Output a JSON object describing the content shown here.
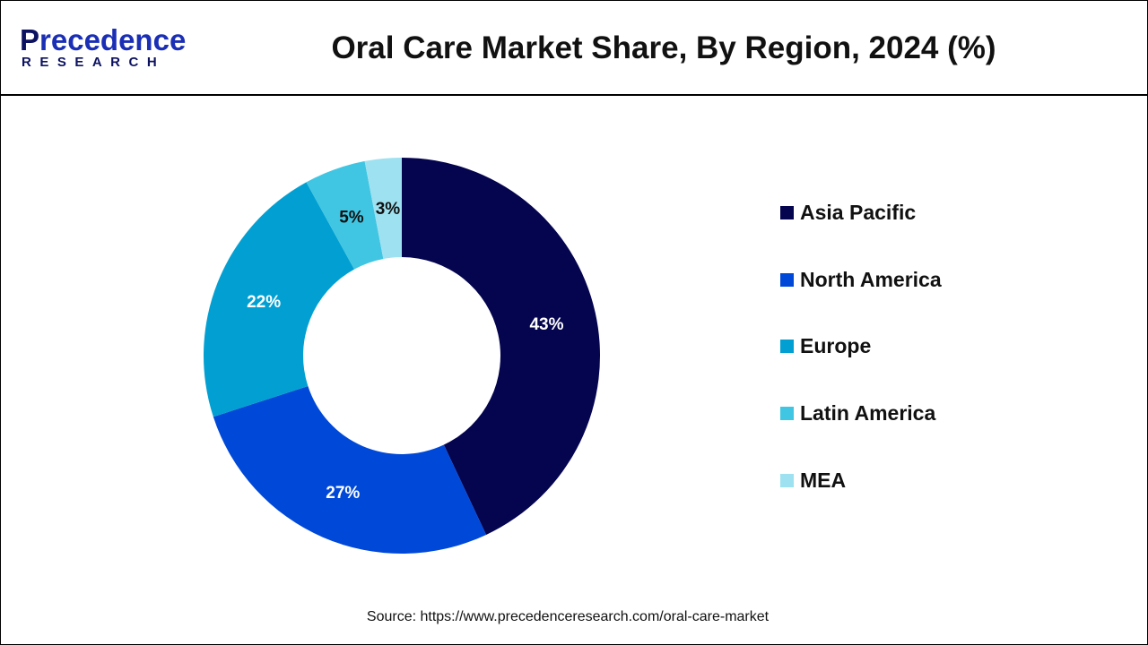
{
  "header": {
    "logo_text_top": "Precedence",
    "logo_text_bottom": "RESEARCH",
    "title": "Oral Care Market Share, By Region, 2024 (%)"
  },
  "chart_data": {
    "type": "pie",
    "variant": "donut",
    "title": "Oral Care Market Share, By Region, 2024 (%)",
    "categories": [
      "Asia Pacific",
      "North America",
      "Europe",
      "Latin America",
      "MEA"
    ],
    "values": [
      43,
      27,
      22,
      5,
      3
    ],
    "data_labels": [
      "43%",
      "27%",
      "22%",
      "5%",
      "3%"
    ],
    "colors": [
      "#04044f",
      "#0048d8",
      "#02a0d2",
      "#40c6e2",
      "#9ee1f0"
    ],
    "label_colors": [
      "#ffffff",
      "#ffffff",
      "#ffffff",
      "#111111",
      "#111111"
    ],
    "legend_position": "right"
  },
  "source": "Source: https://www.precedenceresearch.com/oral-care-market"
}
